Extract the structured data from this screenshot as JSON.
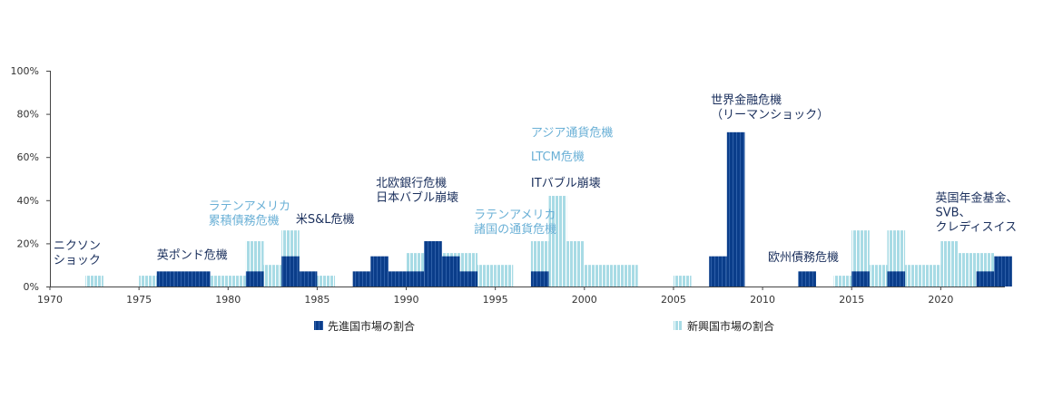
{
  "chart_data": {
    "type": "bar",
    "title": "",
    "xlabel": "",
    "ylabel": "",
    "xlim": [
      1970,
      2023
    ],
    "ylim": [
      0,
      100
    ],
    "y_ticks": [
      "0%",
      "20%",
      "40%",
      "60%",
      "80%",
      "100%"
    ],
    "x_ticks": [
      "1970",
      "1975",
      "1980",
      "1985",
      "1990",
      "1995",
      "2000",
      "2005",
      "2010",
      "2015",
      "2020"
    ],
    "colors": {
      "developed": "#0a3d8a",
      "emerging": "#8fd0dd",
      "annotation_dark": "#1a2f5c",
      "annotation_light": "#6ab0d6",
      "axis": "#444444"
    },
    "series": [
      {
        "name": "先進国市場の割合",
        "points": [
          {
            "year": 1976,
            "value": 7
          },
          {
            "year": 1977,
            "value": 7
          },
          {
            "year": 1978,
            "value": 7
          },
          {
            "year": 1981,
            "value": 7
          },
          {
            "year": 1983,
            "value": 14
          },
          {
            "year": 1984,
            "value": 7
          },
          {
            "year": 1987,
            "value": 7
          },
          {
            "year": 1988,
            "value": 14
          },
          {
            "year": 1989,
            "value": 7
          },
          {
            "year": 1990,
            "value": 7
          },
          {
            "year": 1991,
            "value": 21
          },
          {
            "year": 1992,
            "value": 14
          },
          {
            "year": 1993,
            "value": 7
          },
          {
            "year": 1997,
            "value": 7
          },
          {
            "year": 2007,
            "value": 14
          },
          {
            "year": 2008,
            "value": 71.5
          },
          {
            "year": 2012,
            "value": 7
          },
          {
            "year": 2015,
            "value": 7
          },
          {
            "year": 2017,
            "value": 7
          },
          {
            "year": 2022,
            "value": 7
          },
          {
            "year": 2023,
            "value": 14
          }
        ]
      },
      {
        "name": "新興国市場の割合",
        "points": [
          {
            "year": 1972,
            "value": 5
          },
          {
            "year": 1975,
            "value": 5
          },
          {
            "year": 1979,
            "value": 5
          },
          {
            "year": 1980,
            "value": 5
          },
          {
            "year": 1981,
            "value": 21
          },
          {
            "year": 1982,
            "value": 10
          },
          {
            "year": 1983,
            "value": 26
          },
          {
            "year": 1985,
            "value": 5
          },
          {
            "year": 1990,
            "value": 15.5
          },
          {
            "year": 1992,
            "value": 15.5
          },
          {
            "year": 1993,
            "value": 15.5
          },
          {
            "year": 1994,
            "value": 10
          },
          {
            "year": 1995,
            "value": 10
          },
          {
            "year": 1997,
            "value": 21
          },
          {
            "year": 1998,
            "value": 42
          },
          {
            "year": 1999,
            "value": 21
          },
          {
            "year": 2000,
            "value": 10
          },
          {
            "year": 2001,
            "value": 10
          },
          {
            "year": 2002,
            "value": 10
          },
          {
            "year": 2005,
            "value": 5
          },
          {
            "year": 2008,
            "value": 10
          },
          {
            "year": 2014,
            "value": 5
          },
          {
            "year": 2015,
            "value": 26
          },
          {
            "year": 2016,
            "value": 10
          },
          {
            "year": 2017,
            "value": 26
          },
          {
            "year": 2018,
            "value": 10
          },
          {
            "year": 2019,
            "value": 10
          },
          {
            "year": 2020,
            "value": 21
          },
          {
            "year": 2021,
            "value": 15.5
          },
          {
            "year": 2022,
            "value": 15.5
          }
        ]
      }
    ],
    "annotations": [
      {
        "lines": [
          "ニクソン",
          "ショック"
        ],
        "year": 1970.2,
        "value": 17.2,
        "tone": "dark"
      },
      {
        "lines": [
          "英ポンド危機"
        ],
        "year": 1976.0,
        "value": 12.9,
        "tone": "dark"
      },
      {
        "lines": [
          "ラテンアメリカ",
          "累積債務危機"
        ],
        "year": 1978.9,
        "value": 35.5,
        "tone": "light"
      },
      {
        "lines": [
          "米S&L危機"
        ],
        "year": 1983.8,
        "value": 29.5,
        "tone": "dark"
      },
      {
        "lines": [
          "北欧銀行危機",
          "日本バブル崩壊"
        ],
        "year": 1988.3,
        "value": 46.2,
        "tone": "dark"
      },
      {
        "lines": [
          "ラテンアメリカ",
          "諸国の通貨危機"
        ],
        "year": 1993.8,
        "value": 31.6,
        "tone": "light"
      },
      {
        "lines": [
          "アジア通貨危機"
        ],
        "year": 1997.0,
        "value": 69.5,
        "tone": "light"
      },
      {
        "lines": [
          "LTCM危機"
        ],
        "year": 1997.0,
        "value": 58.5,
        "tone": "light"
      },
      {
        "lines": [
          "ITバブル崩壊"
        ],
        "year": 1997.0,
        "value": 46.2,
        "tone": "dark"
      },
      {
        "lines": [
          "世界金融危機",
          "（リーマンショック）"
        ],
        "year": 2007.1,
        "value": 84.6,
        "tone": "dark"
      },
      {
        "lines": [
          "欧州債務危機"
        ],
        "year": 2010.3,
        "value": 11.7,
        "tone": "dark"
      },
      {
        "lines": [
          "英国年金基金、",
          "SVB、",
          "クレディスイス"
        ],
        "year": 2019.7,
        "value": 39.2,
        "tone": "dark"
      }
    ]
  }
}
